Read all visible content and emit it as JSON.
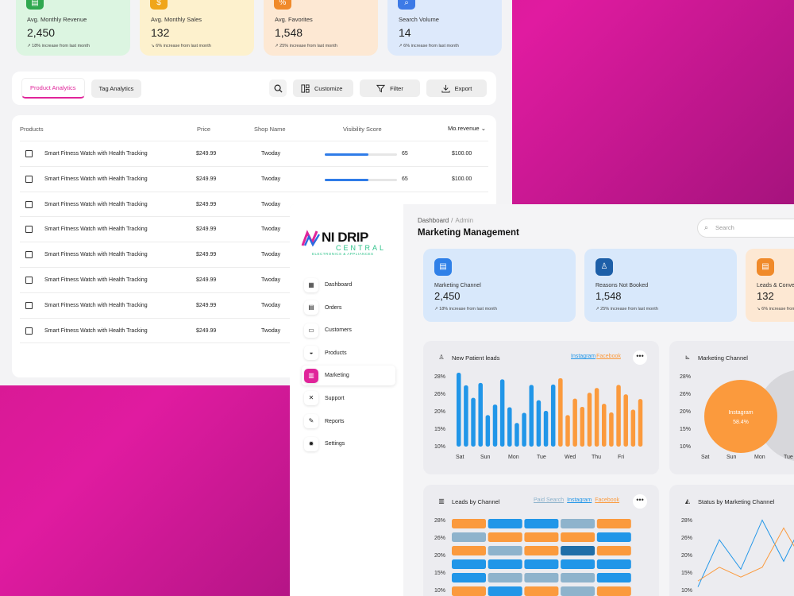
{
  "back": {
    "stats": [
      {
        "label": "Avg. Monthly Revenue",
        "value": "2,450",
        "note": "↗  18% increase from last month",
        "icon": "wallet-icon",
        "glyph": "▤",
        "bg": "#dcf5e1",
        "accent": "#2fa84f"
      },
      {
        "label": "Avg. Monthly Sales",
        "value": "132",
        "note": "↘  6% increase from last month",
        "icon": "dollar-icon",
        "glyph": "$",
        "bg": "#fdf1cd",
        "accent": "#f0a61a"
      },
      {
        "label": "Avg. Favorites",
        "value": "1,548",
        "note": "↗  25% increase from last month",
        "icon": "percent-icon",
        "glyph": "%",
        "bg": "#fde8d3",
        "accent": "#f08a2a"
      },
      {
        "label": "Search Volume",
        "value": "14",
        "note": "↗  6% increase from last month",
        "icon": "search-volume-icon",
        "glyph": "⌕",
        "bg": "#dde9fb",
        "accent": "#3d7ae6"
      }
    ],
    "tabs": [
      "Product Analytics",
      "Tag Analytics"
    ],
    "toolbar": {
      "customize": "Customize",
      "filter": "Filter",
      "export": "Export"
    },
    "table": {
      "headers": {
        "products": "Products",
        "price": "Price",
        "shop": "Shop Name",
        "visibility": "Visibility Score",
        "revenue": "Mo.revenue"
      },
      "rows": [
        {
          "product": "Smart Fitness Watch with Health Tracking",
          "price": "$249.99",
          "shop": "Twoday",
          "score": "65",
          "score_level": 0.6,
          "revenue": "$100.00"
        },
        {
          "product": "Smart Fitness Watch with Health Tracking",
          "price": "$249.99",
          "shop": "Twoday",
          "score": "65",
          "score_level": 0.6,
          "revenue": "$100.00"
        },
        {
          "product": "Smart Fitness Watch with Health Tracking",
          "price": "$249.99",
          "shop": "Twoday"
        },
        {
          "product": "Smart Fitness Watch with Health Tracking",
          "price": "$249.99",
          "shop": "Twoday"
        },
        {
          "product": "Smart Fitness Watch with Health Tracking",
          "price": "$249.99",
          "shop": "Twoday"
        },
        {
          "product": "Smart Fitness Watch with Health Tracking",
          "price": "$249.99",
          "shop": "Twoday"
        },
        {
          "product": "Smart Fitness Watch with Health Tracking",
          "price": "$249.99",
          "shop": "Twoday"
        },
        {
          "product": "Smart Fitness Watch with Health Tracking",
          "price": "$249.99",
          "shop": "Twoday"
        }
      ]
    }
  },
  "front": {
    "logo": {
      "name": "NI DRIP",
      "sub1": "CENTRAL",
      "sub2": "ELECTRONICS & APPLIANCES"
    },
    "nav": [
      {
        "label": "Dashboard",
        "icon": "store-icon",
        "glyph": "▦"
      },
      {
        "label": "Orders",
        "icon": "orders-icon",
        "glyph": "▤"
      },
      {
        "label": "Customers",
        "icon": "customers-icon",
        "glyph": "▭"
      },
      {
        "label": "Products",
        "icon": "products-icon",
        "glyph": "◒"
      },
      {
        "label": "Marketing",
        "icon": "marketing-icon",
        "glyph": "▥",
        "active": true
      },
      {
        "label": "Support",
        "icon": "support-icon",
        "glyph": "✕"
      },
      {
        "label": "Reports",
        "icon": "reports-icon",
        "glyph": "✎"
      },
      {
        "label": "Settings",
        "icon": "settings-icon",
        "glyph": "✹"
      }
    ],
    "breadcrumb": {
      "parent": "Dashboard",
      "sep": "/",
      "current": "Admin"
    },
    "title": "Marketing Management",
    "search_placeholder": "Search",
    "kpis": [
      {
        "label": "Marketing Channel",
        "value": "2,450",
        "note": "↗  18% increase from last month",
        "icon": "wallet-icon",
        "glyph": "▤",
        "bg": "#d8e8fb",
        "accent": "#2f80e8"
      },
      {
        "label": "Reasons Not Booked",
        "value": "1,548",
        "note": "↗  25% increase from last month",
        "icon": "user-icon",
        "glyph": "♙",
        "bg": "#d8e8fb",
        "accent": "#1d5fa8"
      },
      {
        "label": "Leads & Conve",
        "value": "132",
        "note": "↘  6% increase from last",
        "icon": "chat-icon",
        "glyph": "▤",
        "bg": "#fde8d3",
        "accent": "#f08a2a"
      }
    ],
    "cards": {
      "patient": {
        "title": "New Patient leads",
        "legend": [
          "Instagram",
          "Facebook"
        ]
      },
      "channel": {
        "title": "Marketing Channel"
      },
      "leads": {
        "title": "Leads by Channel",
        "legend": [
          "Paid Search",
          "Instagram",
          "Facebook"
        ]
      },
      "status": {
        "title": "Status by Marketing Channel"
      }
    },
    "more_glyph": "•••"
  },
  "colors": {
    "blue": "#2196e8",
    "orange": "#fb9a3d",
    "steel": "#8eb3cc",
    "navy": "#1f6ea8"
  },
  "chart_data": [
    {
      "type": "bar",
      "title": "New Patient leads",
      "x_ticks": [
        "Sat",
        "Sun",
        "Mon",
        "Tue",
        "Wed",
        "Thu",
        "Fri"
      ],
      "y_ticks": [
        "28%",
        "26%",
        "20%",
        "15%",
        "10%"
      ],
      "ylim": [
        10,
        28
      ],
      "series": [
        {
          "name": "Instagram",
          "color": "#2196e8",
          "values": [
            28.4,
            25.2,
            22.0,
            25.8,
            17.6,
            20.3,
            26.7,
            19.6,
            15.6,
            18.2,
            25.3,
            21.4,
            18.7,
            25.4
          ]
        },
        {
          "name": "Facebook",
          "color": "#fb9a3d",
          "values": [
            27.0,
            17.6,
            21.8,
            19.7,
            23.3,
            24.5,
            20.5,
            18.3,
            25.3,
            22.9,
            19.0,
            21.7
          ]
        }
      ]
    },
    {
      "type": "pie",
      "title": "Marketing Channel",
      "slices": [
        {
          "label": "Instagram",
          "value": 58.4,
          "color": "#fb9a3d"
        },
        {
          "label": "other",
          "value": 41.6,
          "color": "#d7d7db"
        }
      ],
      "y_ticks": [
        "28%",
        "26%",
        "20%",
        "15%",
        "10%"
      ],
      "x_ticks": [
        "Sat",
        "Sun",
        "Mon",
        "Tue"
      ]
    },
    {
      "type": "heatmap",
      "title": "Leads by Channel",
      "y_ticks": [
        "28%",
        "26%",
        "20%",
        "15%",
        "10%"
      ],
      "cells": [
        [
          "orange",
          "blue",
          "blue",
          "steel",
          "orange"
        ],
        [
          "steel",
          "orange",
          "orange",
          "orange",
          "blue"
        ],
        [
          "orange",
          "steel",
          "orange",
          "navy",
          "orange"
        ],
        [
          "blue",
          "blue",
          "blue",
          "blue",
          "blue"
        ],
        [
          "blue",
          "steel",
          "steel",
          "steel",
          "blue"
        ],
        [
          "orange",
          "blue",
          "orange",
          "steel",
          "orange"
        ]
      ]
    },
    {
      "type": "line",
      "title": "Status by Marketing Channel",
      "y_ticks": [
        "28%",
        "26%",
        "20%",
        "15%",
        "10%"
      ],
      "series": [
        {
          "color": "#2196e8",
          "values": [
            10.5,
            22.5,
            15.0,
            27.5,
            17.0,
            28.2
          ]
        },
        {
          "color": "#fb9a3d",
          "values": [
            12.0,
            15.5,
            13.0,
            15.5,
            25.5,
            16.0
          ]
        }
      ]
    }
  ]
}
